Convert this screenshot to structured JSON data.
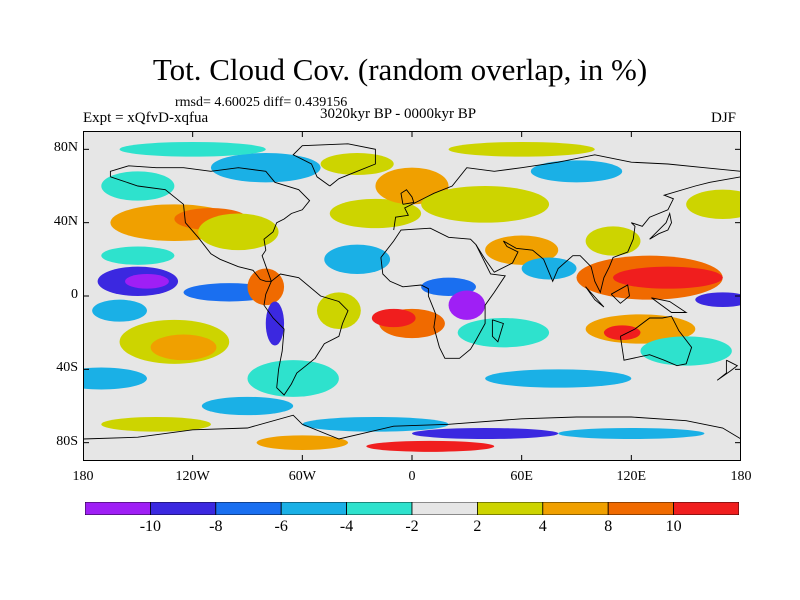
{
  "title": "Tot. Cloud Cov. (random overlap, in %)",
  "stats": "rmsd= 4.60025 diff= 0.439156",
  "expt": "Expt = xQfvD-xqfua",
  "period": "3020kyr BP - 0000kyr BP",
  "season": "DJF",
  "map": {
    "lat_labels": [
      "80N",
      "40N",
      "0",
      "40S",
      "80S"
    ],
    "lat_values": [
      80,
      40,
      0,
      -40,
      -80
    ],
    "lon_labels": [
      "180",
      "120W",
      "60W",
      "0",
      "60E",
      "120E",
      "180"
    ],
    "lon_values": [
      -180,
      -120,
      -60,
      0,
      60,
      120,
      180
    ],
    "lon_range": [
      -180,
      180
    ],
    "lat_range": [
      -90,
      90
    ],
    "background_color": "#e6e6e6",
    "coastline_color": "#000000"
  },
  "colorbar": {
    "labels": [
      "-10",
      "-8",
      "-6",
      "-4",
      "-2",
      "2",
      "4",
      "8",
      "10"
    ],
    "colors": [
      "#9f1ff5",
      "#3b28e0",
      "#1a6ff0",
      "#1ab0e6",
      "#2ee2cd",
      "#e6e6e6",
      "#cdd400",
      "#f0a000",
      "#f06a00",
      "#f01e1e"
    ]
  }
}
